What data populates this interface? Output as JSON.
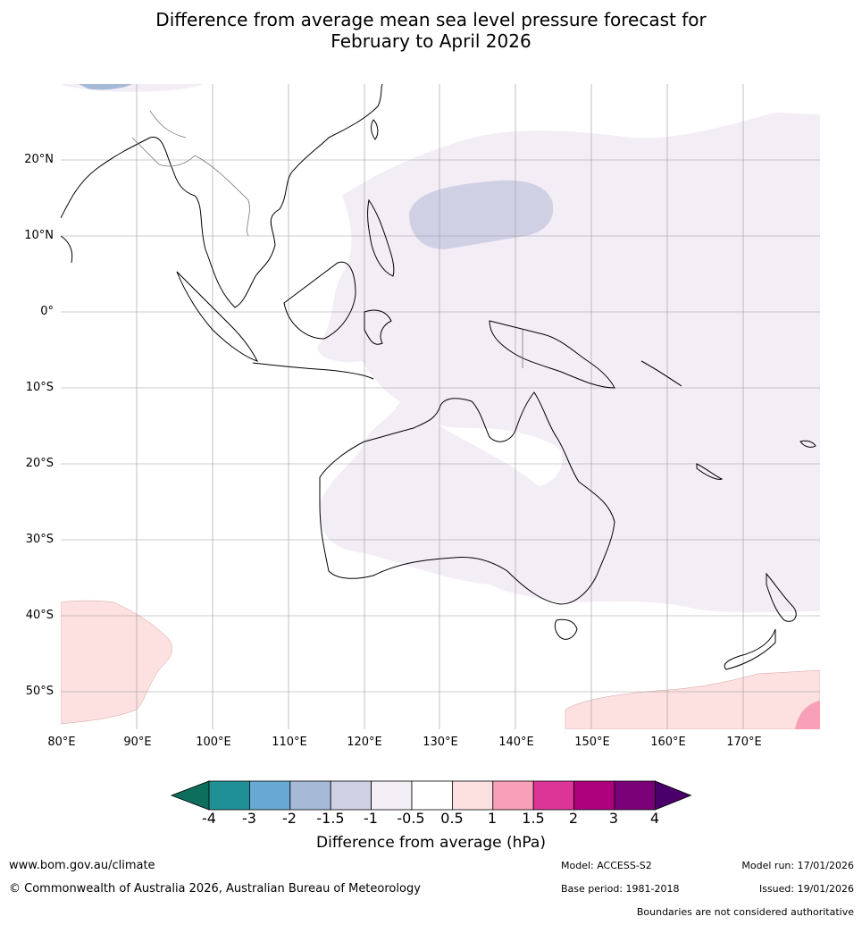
{
  "title_line1": "Difference from average mean sea level pressure forecast for",
  "title_line2": "February to April 2026",
  "lat_labels": [
    "20°N",
    "10°N",
    "0°",
    "10°S",
    "20°S",
    "30°S",
    "40°S",
    "50°S"
  ],
  "lon_labels": [
    "80°E",
    "90°E",
    "100°E",
    "110°E",
    "120°E",
    "130°E",
    "140°E",
    "150°E",
    "160°E",
    "170°E"
  ],
  "colorbar": {
    "ticks": [
      "-4",
      "-3",
      "-2",
      "-1.5",
      "-1",
      "-0.5",
      "0.5",
      "1",
      "1.5",
      "2",
      "3",
      "4"
    ],
    "colors": [
      "#0e6e5e",
      "#1f9196",
      "#68a9d3",
      "#a6b9d6",
      "#d0d0e5",
      "#f3edf6",
      "#ffffff",
      "#fde0e0",
      "#f8a0b8",
      "#dd3597",
      "#ad017e",
      "#7a0177",
      "#4a006a"
    ],
    "label": "Difference from average (hPa)"
  },
  "footer": {
    "url": "www.bom.gov.au/climate",
    "copyright": "© Commonwealth of Australia 2026, Australian Bureau of Meteorology",
    "model": "Model: ACCESS-S2",
    "base_period": "Base period: 1981-2018",
    "model_run": "Model run: 17/01/2026",
    "issued": "Issued: 19/01/2026",
    "disclaimer": "Boundaries are not considered authoritative"
  }
}
